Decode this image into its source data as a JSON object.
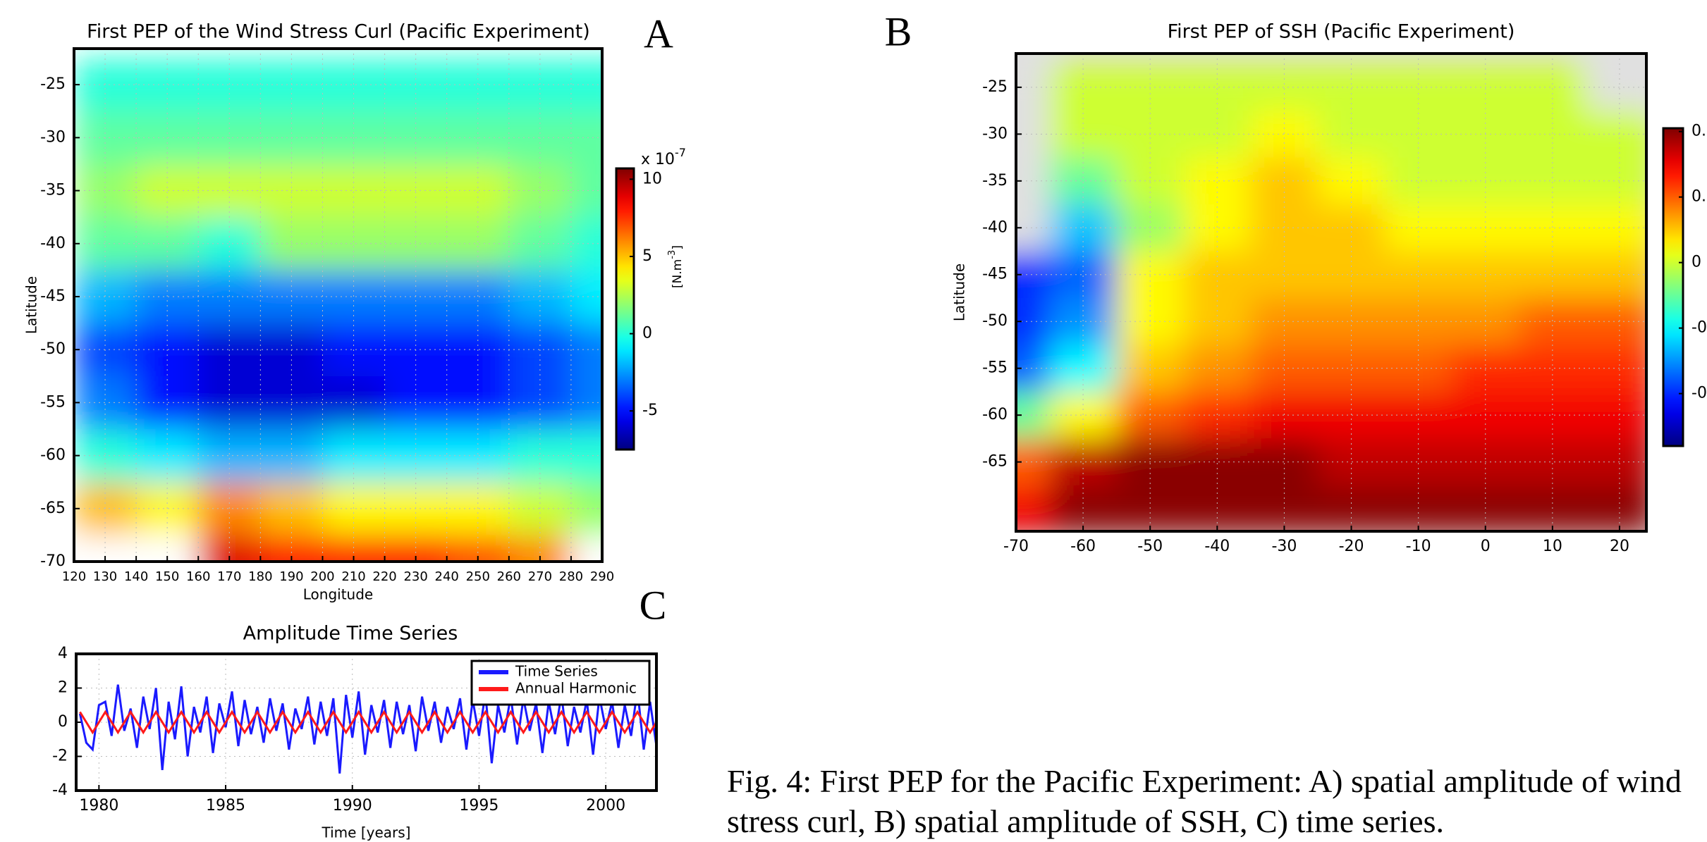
{
  "chart_data": [
    {
      "type": "heatmap",
      "label": "A",
      "title": "First PEP of the Wind Stress Curl (Pacific Experiment)",
      "x_label": "Longitude",
      "y_label": "Latitude",
      "xlim": [
        120,
        290
      ],
      "ylim": [
        -70,
        -21.6
      ],
      "xticks": [
        120,
        130,
        140,
        150,
        160,
        170,
        180,
        190,
        200,
        210,
        220,
        230,
        240,
        250,
        260,
        270,
        280,
        290
      ],
      "yticks": [
        -25,
        -30,
        -35,
        -40,
        -45,
        -50,
        -55,
        -60,
        -65,
        -70
      ],
      "grid": true,
      "colormap": "jet",
      "null_color": "#ffffff",
      "x": [
        130,
        150,
        170,
        190,
        210,
        230,
        250,
        270,
        290
      ],
      "y": [
        -25,
        -30,
        -35,
        -40,
        -45,
        -50,
        -55,
        -60,
        -65,
        -70
      ],
      "z": [
        [
          0,
          0,
          0,
          0,
          0,
          0,
          0,
          0,
          0
        ],
        [
          1,
          1,
          1,
          1,
          1,
          1,
          1,
          1,
          1
        ],
        [
          2,
          3,
          3,
          3,
          3,
          3,
          3,
          2,
          1
        ],
        [
          1,
          1,
          0,
          2,
          2,
          2,
          2,
          1,
          0
        ],
        [
          -2,
          -3,
          -3,
          -3,
          -3,
          -3,
          -3,
          -2,
          -1
        ],
        [
          -4,
          -5,
          -6,
          -6,
          -5,
          -5,
          -5,
          -4,
          -3
        ],
        [
          -3,
          -5,
          -6,
          -6,
          -6,
          -5,
          -5,
          -4,
          -3
        ],
        [
          0,
          -1,
          -2,
          -2,
          -1,
          -1,
          -1,
          0,
          0
        ],
        [
          5,
          4,
          6,
          5,
          4,
          4,
          4,
          3,
          2
        ],
        [
          null,
          null,
          9,
          8,
          8,
          8,
          7,
          6,
          null
        ]
      ],
      "zlim": [
        -7.5,
        10.7
      ],
      "zticks": [
        10,
        5,
        0,
        -5
      ],
      "colorbar_scale": {
        "base": "x 10",
        "exponent": "-7"
      },
      "colorbar_unit": {
        "base": "[N.m",
        "exponent": "-3",
        "end": "]"
      }
    },
    {
      "type": "heatmap",
      "label": "B",
      "title": "First PEP of SSH (Pacific Experiment)",
      "y_label": "Latitude",
      "xlim": [
        -70,
        24
      ],
      "ylim": [
        -72.4,
        -21.4
      ],
      "xticks": [
        -70,
        -60,
        -50,
        -40,
        -30,
        -20,
        -10,
        0,
        10,
        20
      ],
      "yticks": [
        -25,
        -30,
        -35,
        -40,
        -45,
        -50,
        -55,
        -60,
        -65
      ],
      "grid": true,
      "colormap": "jet",
      "null_color": "#e0e0e0",
      "x": [
        -70,
        -60,
        -50,
        -40,
        -30,
        -20,
        -10,
        0,
        10,
        20
      ],
      "y": [
        -25,
        -30,
        -35,
        -40,
        -45,
        -50,
        -55,
        -60,
        -65,
        -70
      ],
      "z": [
        [
          null,
          0,
          0,
          0,
          0,
          0,
          0,
          0,
          0,
          null
        ],
        [
          null,
          0,
          0,
          0,
          0.05,
          0,
          0,
          0,
          0,
          0
        ],
        [
          null,
          -0.1,
          0,
          0.05,
          0.1,
          0.05,
          0,
          0,
          0,
          0
        ],
        [
          null,
          -0.25,
          -0.05,
          0.05,
          0.1,
          0.1,
          0.05,
          0.05,
          0.05,
          0.05
        ],
        [
          -0.4,
          -0.35,
          0.05,
          0.1,
          0.1,
          0.1,
          0.1,
          0.1,
          0.1,
          0.1
        ],
        [
          -0.4,
          -0.3,
          0.05,
          0.1,
          0.15,
          0.15,
          0.15,
          0.15,
          0.2,
          0.2
        ],
        [
          -0.35,
          -0.2,
          0.1,
          0.15,
          0.2,
          0.2,
          0.2,
          0.25,
          0.25,
          0.25
        ],
        [
          -0.1,
          0.05,
          0.2,
          0.25,
          0.3,
          0.3,
          0.3,
          0.3,
          0.3,
          0.3
        ],
        [
          0.2,
          0.35,
          0.4,
          0.4,
          0.4,
          0.35,
          0.35,
          0.35,
          0.35,
          0.35
        ],
        [
          0.3,
          0.4,
          0.4,
          0.4,
          0.4,
          0.4,
          0.4,
          0.4,
          0.4,
          0.4
        ]
      ],
      "zlim": [
        -0.56,
        0.41
      ],
      "zticks": [
        {
          "value": 0.4,
          "label": "0."
        },
        {
          "value": 0.2,
          "label": "0."
        },
        0,
        {
          "value": -0.2,
          "label": "-0"
        },
        {
          "value": -0.4,
          "label": "-0"
        }
      ]
    },
    {
      "type": "line",
      "label": "C",
      "title": "Amplitude Time Series",
      "x_label": "Time [years]",
      "xlim": [
        1979.1,
        2002
      ],
      "ylim": [
        -4,
        4
      ],
      "xticks": [
        1980,
        1985,
        1990,
        1995,
        2000
      ],
      "yticks": [
        -4,
        -2,
        0,
        2,
        4
      ],
      "grid": true,
      "legend": "upper right",
      "x": [
        1979.25,
        1979.5,
        1979.75,
        1980,
        1980.25,
        1980.5,
        1980.75,
        1981,
        1981.25,
        1981.5,
        1981.75,
        1982,
        1982.25,
        1982.5,
        1982.75,
        1983,
        1983.25,
        1983.5,
        1983.75,
        1984,
        1984.25,
        1984.5,
        1984.75,
        1985,
        1985.25,
        1985.5,
        1985.75,
        1986,
        1986.25,
        1986.5,
        1986.75,
        1987,
        1987.25,
        1987.5,
        1987.75,
        1988,
        1988.25,
        1988.5,
        1988.75,
        1989,
        1989.25,
        1989.5,
        1989.75,
        1990,
        1990.25,
        1990.5,
        1990.75,
        1991,
        1991.25,
        1991.5,
        1991.75,
        1992,
        1992.25,
        1992.5,
        1992.75,
        1993,
        1993.25,
        1993.5,
        1993.75,
        1994,
        1994.25,
        1994.5,
        1994.75,
        1995,
        1995.25,
        1995.5,
        1995.75,
        1996,
        1996.25,
        1996.5,
        1996.75,
        1997,
        1997.25,
        1997.5,
        1997.75,
        1998,
        1998.25,
        1998.5,
        1998.75,
        1999,
        1999.25,
        1999.5,
        1999.75,
        2000,
        2000.25,
        2000.5,
        2000.75,
        2001,
        2001.25,
        2001.5,
        2001.75,
        2002
      ],
      "series": [
        {
          "name": "Time Series",
          "color": "#1a1aff",
          "values": [
            0.5,
            -1.2,
            -1.6,
            1.0,
            1.2,
            -0.8,
            2.2,
            -0.5,
            0.8,
            -1.5,
            1.5,
            -0.4,
            2.0,
            -2.8,
            1.2,
            -1.0,
            2.1,
            -2.0,
            0.9,
            -0.6,
            1.5,
            -1.8,
            1.1,
            -0.3,
            1.8,
            -1.4,
            1.3,
            -0.7,
            0.9,
            -1.2,
            1.4,
            -0.5,
            1.1,
            -1.6,
            0.8,
            -0.4,
            1.5,
            -1.3,
            1.2,
            -0.8,
            1.4,
            -3.0,
            1.6,
            -0.9,
            1.8,
            -1.9,
            1.0,
            -0.6,
            1.3,
            -1.5,
            1.2,
            -0.7,
            1.0,
            -1.7,
            1.5,
            -0.5,
            1.2,
            -1.2,
            0.9,
            -0.4,
            1.4,
            -1.6,
            1.3,
            -0.8,
            1.7,
            -2.4,
            1.0,
            -0.6,
            1.5,
            -1.3,
            1.4,
            -0.5,
            1.1,
            -1.8,
            1.2,
            -0.7,
            1.6,
            -1.4,
            0.9,
            -0.6,
            1.3,
            -1.9,
            1.5,
            -0.4,
            1.2,
            -1.5,
            1.0,
            -0.8,
            1.9,
            -1.6,
            1.2,
            -1.4
          ]
        },
        {
          "name": "Annual Harmonic",
          "color": "#ff1a1a",
          "values": [
            0.6,
            0,
            -0.6,
            0,
            0.6,
            0,
            -0.6,
            0,
            0.6,
            0,
            -0.6,
            0,
            0.6,
            0,
            -0.6,
            0,
            0.6,
            0,
            -0.6,
            0,
            0.6,
            0,
            -0.6,
            0,
            0.6,
            0,
            -0.6,
            0,
            0.6,
            0,
            -0.6,
            0,
            0.6,
            0,
            -0.6,
            0,
            0.6,
            0,
            -0.6,
            0,
            0.6,
            0,
            -0.6,
            0,
            0.6,
            0,
            -0.6,
            0,
            0.6,
            0,
            -0.6,
            0,
            0.6,
            0,
            -0.6,
            0,
            0.6,
            0,
            -0.6,
            0,
            0.6,
            0,
            -0.6,
            0,
            0.6,
            0,
            -0.6,
            0,
            0.6,
            0,
            -0.6,
            0,
            0.6,
            0,
            -0.6,
            0,
            0.6,
            0,
            -0.6,
            0,
            0.6,
            0,
            -0.6,
            0,
            0.6,
            0,
            -0.6,
            0,
            0.6,
            0,
            -0.6,
            0
          ]
        }
      ]
    }
  ],
  "caption": {
    "lines": [
      "Fig. 4: First PEP for the Pacific Experiment: A) spatial amplitude of wind",
      "stress curl, B) spatial amplitude of SSH, C) time series."
    ]
  }
}
